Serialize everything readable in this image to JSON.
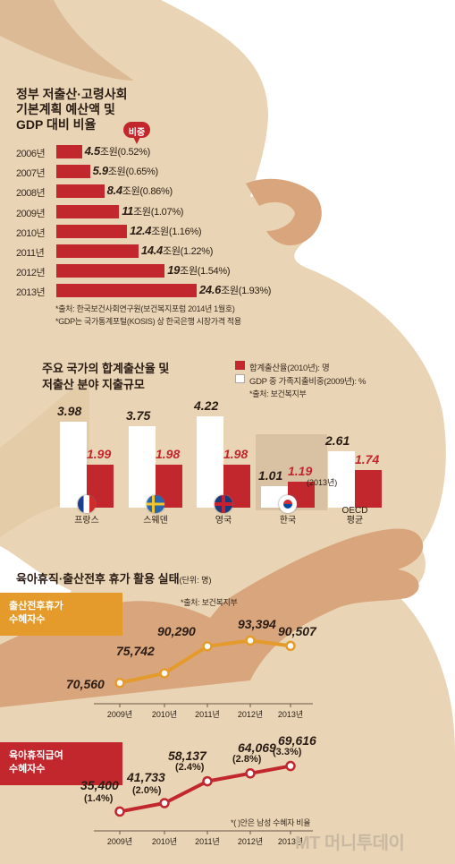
{
  "watermark": "MT 머니투데이",
  "section1": {
    "title_lines": [
      "정부 저출산·고령사회",
      "기본계획 예산액 및",
      "GDP 대비 비율"
    ],
    "ratio_badge": "비중",
    "notes": [
      "*출처: 한국보건사회연구원(보건복지포럼 2014년 1월호)",
      "*GDP는 국가통계포털(KOSIS) 상 한국은행 시장가격 적용"
    ]
  },
  "section2": {
    "title_lines": [
      "주요 국가의 합계출산율 및",
      "저출산 분야 지출규모"
    ],
    "legend": [
      {
        "label": "합계출산율(2010년): 명",
        "color": "#c1272d"
      },
      {
        "label": "GDP 중 가족지출비중(2009년): %",
        "color": "#ffffff"
      }
    ],
    "source": "*출처: 보건복지부",
    "korea_note": "(2013년)"
  },
  "section3": {
    "title": "육아휴직·출산전후 휴가 활용 실태",
    "unit": "(단위: 명)",
    "source": "*출처: 보건복지부",
    "footnote": "*( )안은 남성 수혜자 비율",
    "chart1": {
      "label_lines": [
        "출산전후휴가",
        "수혜자수"
      ]
    },
    "chart2": {
      "label_lines": [
        "육아휴직급여",
        "수혜자수"
      ]
    }
  },
  "chart_data": [
    {
      "type": "bar",
      "orientation": "horizontal",
      "categories": [
        "2006년",
        "2007년",
        "2008년",
        "2009년",
        "2010년",
        "2011년",
        "2012년",
        "2013년"
      ],
      "values": [
        4.5,
        5.9,
        8.4,
        11,
        12.4,
        14.4,
        19,
        24.6
      ],
      "value_unit": "조원",
      "ratios": [
        "(0.52%)",
        "(0.65%)",
        "(0.86%)",
        "(1.07%)",
        "(1.16%)",
        "(1.22%)",
        "(1.54%)",
        "(1.93%)"
      ],
      "color": "#c1272d"
    },
    {
      "type": "bar",
      "categories": [
        "프랑스",
        "스웨덴",
        "영국",
        "한국",
        "OECD 평균"
      ],
      "flags": [
        "france-flag-icon",
        "sweden-flag-icon",
        "uk-flag-icon",
        "korea-flag-icon",
        ""
      ],
      "series": [
        {
          "name": "GDP 중 가족지출비중(2009년): %",
          "values": [
            3.98,
            3.75,
            4.22,
            1.01,
            2.61
          ],
          "color": "#ffffff"
        },
        {
          "name": "합계출산율(2010년): 명",
          "values": [
            1.99,
            1.98,
            1.98,
            1.19,
            1.74
          ],
          "color": "#c1272d"
        }
      ],
      "ylim": [
        0,
        4.5
      ]
    },
    {
      "type": "line",
      "x": [
        "2009년",
        "2010년",
        "2011년",
        "2012년",
        "2013년"
      ],
      "series": [
        {
          "values": [
            70560,
            75742,
            90290,
            93394,
            90507
          ],
          "color": "#e59b2b"
        }
      ],
      "ylim": [
        68000,
        96000
      ]
    },
    {
      "type": "line",
      "x": [
        "2009년",
        "2010년",
        "2011년",
        "2012년",
        "2013년"
      ],
      "series": [
        {
          "values": [
            35400,
            41733,
            58137,
            64069,
            69616
          ],
          "male_ratio": [
            "(1.4%)",
            "(2.0%)",
            "(2.4%)",
            "(2.8%)",
            "(3.3%)"
          ],
          "color": "#c1272d"
        }
      ],
      "ylim": [
        33000,
        72000
      ]
    }
  ]
}
